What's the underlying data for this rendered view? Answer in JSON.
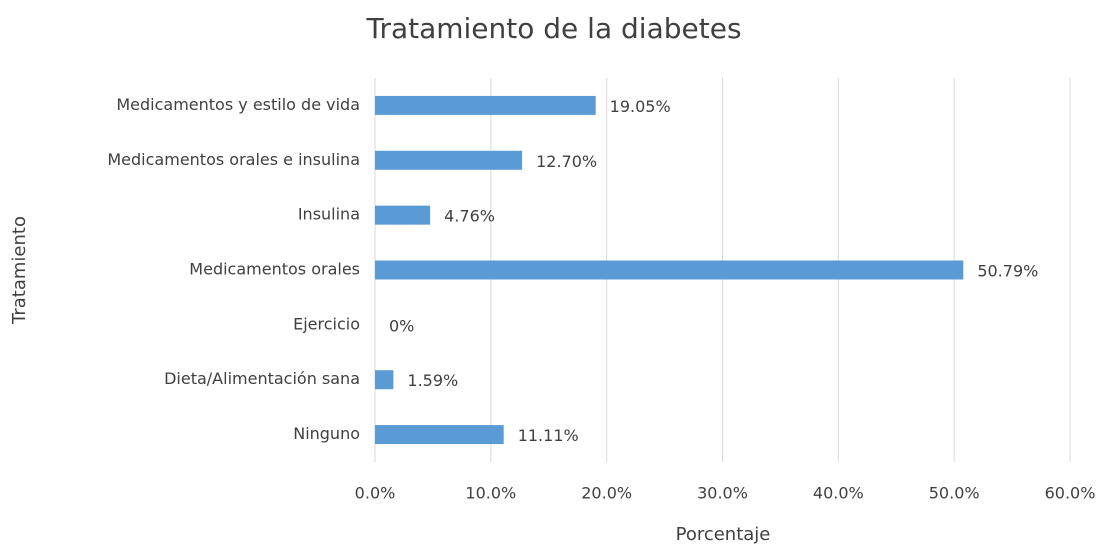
{
  "chart_data": {
    "type": "bar",
    "orientation": "horizontal",
    "title": "Tratamiento de la diabetes",
    "x_label": "Porcentaje",
    "y_label": "Tratamiento",
    "categories": [
      "Medicamentos y estilo de vida",
      "Medicamentos orales e insulina",
      "Insulina",
      "Medicamentos orales",
      "Ejercicio",
      "Dieta/Alimentación sana",
      "Ninguno"
    ],
    "values": [
      19.05,
      12.7,
      4.76,
      50.79,
      0,
      1.59,
      11.11
    ],
    "value_labels": [
      "19.05%",
      "12.70%",
      "4.76%",
      "50.79%",
      "0%",
      "1.59%",
      "11.11%"
    ],
    "color": "#5b9bd5",
    "xlim": [
      0,
      60
    ],
    "xticks": [
      {
        "value": 0,
        "label": "0.0%"
      },
      {
        "value": 10,
        "label": "10.0%"
      },
      {
        "value": 20,
        "label": "20.0%"
      },
      {
        "value": 30,
        "label": "30.0%"
      },
      {
        "value": 40,
        "label": "40.0%"
      },
      {
        "value": 50,
        "label": "50.0%"
      },
      {
        "value": 60,
        "label": "60.0%"
      }
    ],
    "grid": true
  }
}
